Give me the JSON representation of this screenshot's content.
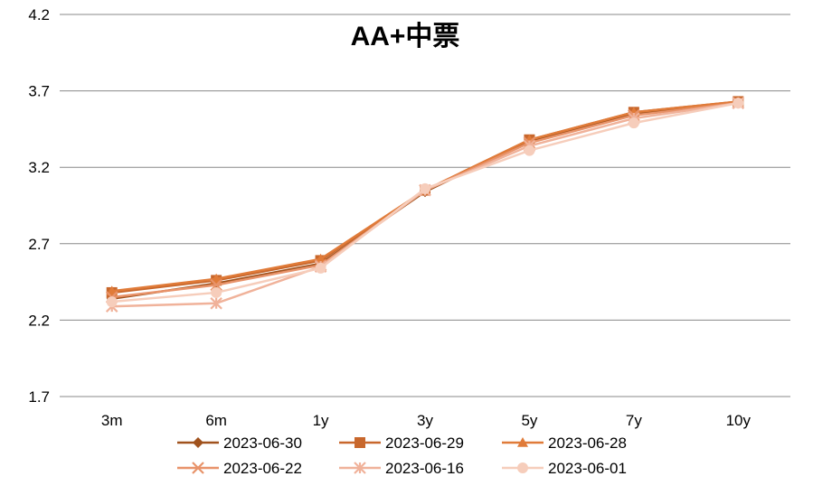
{
  "chart_data": {
    "type": "line",
    "title": "AA+中票",
    "xlabel": "",
    "ylabel": "",
    "categories": [
      "3m",
      "6m",
      "1y",
      "3y",
      "5y",
      "7y",
      "10y"
    ],
    "ylim": [
      1.7,
      4.2
    ],
    "yticks": [
      "1.7",
      "2.2",
      "2.7",
      "3.2",
      "3.7",
      "4.2"
    ],
    "grid": true,
    "legend_position": "bottom",
    "series": [
      {
        "name": "2023-06-30",
        "marker": "diamond",
        "color": "#a0521d",
        "values": [
          2.34,
          2.44,
          2.57,
          3.04,
          3.37,
          3.55,
          3.62
        ]
      },
      {
        "name": "2023-06-29",
        "marker": "square",
        "color": "#c8672c",
        "values": [
          2.38,
          2.46,
          2.59,
          3.05,
          3.38,
          3.56,
          3.63
        ]
      },
      {
        "name": "2023-06-28",
        "marker": "triangle",
        "color": "#e07b39",
        "values": [
          2.39,
          2.47,
          2.6,
          3.05,
          3.38,
          3.56,
          3.63
        ]
      },
      {
        "name": "2023-06-22",
        "marker": "x",
        "color": "#e8936a",
        "values": [
          2.35,
          2.43,
          2.56,
          3.05,
          3.36,
          3.54,
          3.62
        ]
      },
      {
        "name": "2023-06-16",
        "marker": "star",
        "color": "#f0b29a",
        "values": [
          2.29,
          2.31,
          2.55,
          3.05,
          3.34,
          3.52,
          3.62
        ]
      },
      {
        "name": "2023-06-01",
        "marker": "circle",
        "color": "#f6cdbb",
        "values": [
          2.32,
          2.38,
          2.54,
          3.06,
          3.31,
          3.49,
          3.62
        ]
      }
    ]
  }
}
